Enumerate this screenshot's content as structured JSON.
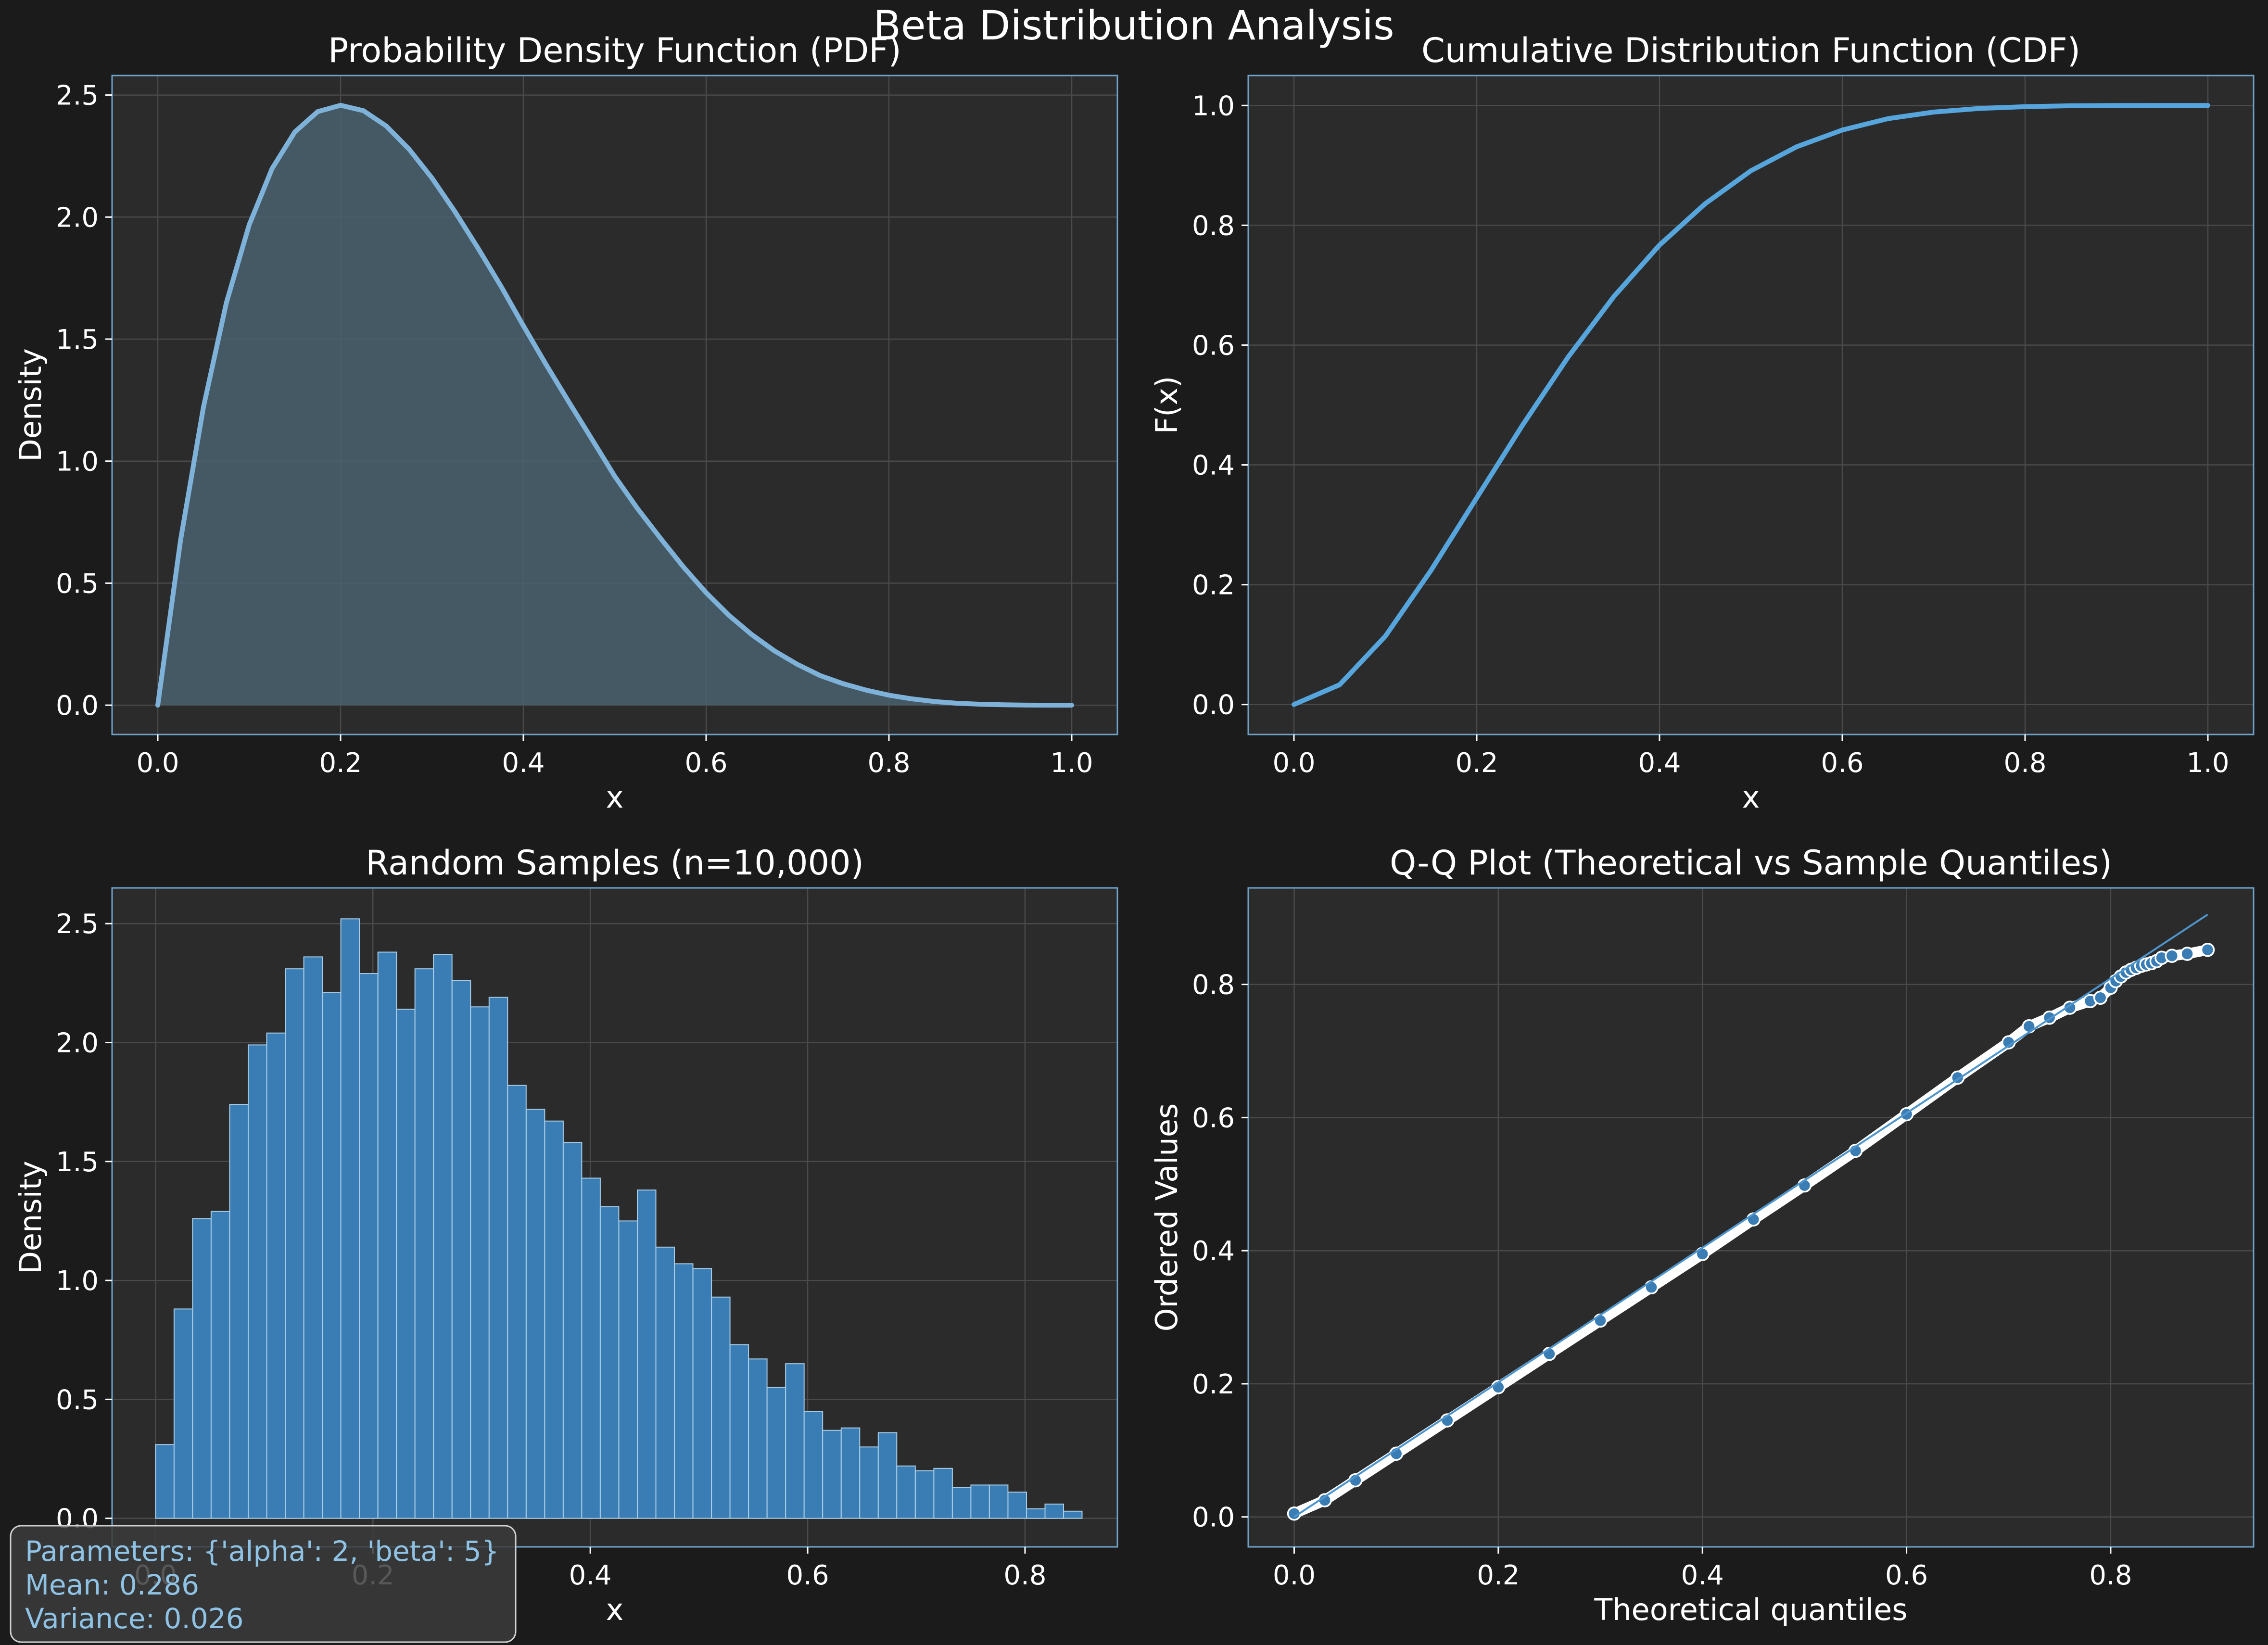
{
  "figure": {
    "suptitle": "Beta Distribution Analysis",
    "background": "#1b1b1b",
    "axes_background": "#2b2b2b",
    "spine_color": "#6fa3c9",
    "grid_color": "#4a4a4a",
    "text_color": "#ffffff"
  },
  "info_box": {
    "line1": "Parameters: {'alpha': 2, 'beta': 5}",
    "line2": "Mean: 0.286",
    "line3": "Variance: 0.026",
    "text_color": "#8fc3e6"
  },
  "chart_data": [
    {
      "type": "area",
      "title": "Probability Density Function (PDF)",
      "xlabel": "x",
      "ylabel": "Density",
      "xlim": [
        -0.05,
        1.05
      ],
      "ylim": [
        -0.12,
        2.58
      ],
      "xticks": [
        0.0,
        0.2,
        0.4,
        0.6,
        0.8,
        1.0
      ],
      "xtick_labels": [
        "0.0",
        "0.2",
        "0.4",
        "0.6",
        "0.8",
        "1.0"
      ],
      "yticks": [
        0.0,
        0.5,
        1.0,
        1.5,
        2.0,
        2.5
      ],
      "ytick_labels": [
        "0.0",
        "0.5",
        "1.0",
        "1.5",
        "2.0",
        "2.5"
      ],
      "grid": true,
      "line_color": "#7fb2d9",
      "fill_color": "#4a6270",
      "x": [
        0.0,
        0.025,
        0.05,
        0.075,
        0.1,
        0.125,
        0.15,
        0.175,
        0.2,
        0.225,
        0.25,
        0.275,
        0.3,
        0.325,
        0.35,
        0.375,
        0.4,
        0.425,
        0.45,
        0.475,
        0.5,
        0.525,
        0.55,
        0.575,
        0.6,
        0.625,
        0.65,
        0.675,
        0.7,
        0.725,
        0.75,
        0.775,
        0.8,
        0.825,
        0.85,
        0.875,
        0.9,
        0.925,
        0.95,
        0.975,
        1.0
      ],
      "y": [
        0.0,
        0.678,
        1.222,
        1.648,
        1.968,
        2.198,
        2.349,
        2.432,
        2.458,
        2.436,
        2.373,
        2.278,
        2.16,
        2.023,
        1.875,
        1.72,
        1.555,
        1.395,
        1.241,
        1.09,
        0.938,
        0.805,
        0.684,
        0.567,
        0.461,
        0.368,
        0.289,
        0.222,
        0.167,
        0.121,
        0.088,
        0.062,
        0.041,
        0.026,
        0.015,
        0.008,
        0.004,
        0.0015,
        0.0005,
        0.0001,
        0.0
      ]
    },
    {
      "type": "line",
      "title": "Cumulative Distribution Function (CDF)",
      "xlabel": "x",
      "ylabel": "F(x)",
      "xlim": [
        -0.05,
        1.05
      ],
      "ylim": [
        -0.05,
        1.05
      ],
      "xticks": [
        0.0,
        0.2,
        0.4,
        0.6,
        0.8,
        1.0
      ],
      "xtick_labels": [
        "0.0",
        "0.2",
        "0.4",
        "0.6",
        "0.8",
        "1.0"
      ],
      "yticks": [
        0.0,
        0.2,
        0.4,
        0.6,
        0.8,
        1.0
      ],
      "ytick_labels": [
        "0.0",
        "0.2",
        "0.4",
        "0.6",
        "0.8",
        "1.0"
      ],
      "grid": true,
      "line_color": "#56a6dd",
      "x": [
        0.0,
        0.05,
        0.1,
        0.15,
        0.2,
        0.25,
        0.3,
        0.35,
        0.4,
        0.45,
        0.5,
        0.55,
        0.6,
        0.65,
        0.7,
        0.75,
        0.8,
        0.85,
        0.9,
        0.95,
        1.0
      ],
      "y": [
        0.0,
        0.033,
        0.114,
        0.224,
        0.345,
        0.466,
        0.58,
        0.681,
        0.767,
        0.836,
        0.891,
        0.931,
        0.959,
        0.978,
        0.989,
        0.995,
        0.998,
        0.9995,
        0.9999,
        1.0,
        1.0
      ]
    },
    {
      "type": "bar",
      "title": "Random Samples (n=10,000)",
      "xlabel": "x",
      "ylabel": "Density",
      "xlim": [
        -0.04,
        0.885
      ],
      "ylim": [
        -0.12,
        2.65
      ],
      "xticks": [
        0.0,
        0.2,
        0.4,
        0.6,
        0.8
      ],
      "xtick_labels": [
        "0.0",
        "0.2",
        "0.4",
        "0.6",
        "0.8"
      ],
      "yticks": [
        0.0,
        0.5,
        1.0,
        1.5,
        2.0,
        2.5
      ],
      "ytick_labels": [
        "0.0",
        "0.5",
        "1.0",
        "1.5",
        "2.0",
        "2.5"
      ],
      "grid": true,
      "bar_color": "#3a7db5",
      "bar_edge_color": "#a9cde6",
      "bin_start": 0.0,
      "bin_width": 0.01705,
      "values": [
        0.31,
        0.88,
        1.26,
        1.29,
        1.74,
        1.99,
        2.04,
        2.31,
        2.36,
        2.21,
        2.52,
        2.29,
        2.38,
        2.14,
        2.31,
        2.37,
        2.26,
        2.15,
        2.19,
        1.82,
        1.72,
        1.67,
        1.58,
        1.43,
        1.31,
        1.25,
        1.38,
        1.14,
        1.07,
        1.05,
        0.93,
        0.73,
        0.67,
        0.55,
        0.65,
        0.45,
        0.37,
        0.38,
        0.3,
        0.36,
        0.22,
        0.2,
        0.21,
        0.13,
        0.14,
        0.14,
        0.11,
        0.04,
        0.06,
        0.03
      ]
    },
    {
      "type": "scatter",
      "title": "Q-Q Plot (Theoretical vs Sample Quantiles)",
      "xlabel": "Theoretical quantiles",
      "ylabel": "Ordered Values",
      "xlim": [
        -0.045,
        0.94
      ],
      "ylim": [
        -0.045,
        0.945
      ],
      "xticks": [
        0.0,
        0.2,
        0.4,
        0.6,
        0.8
      ],
      "xtick_labels": [
        "0.0",
        "0.2",
        "0.4",
        "0.6",
        "0.8"
      ],
      "yticks": [
        0.0,
        0.2,
        0.4,
        0.6,
        0.8
      ],
      "ytick_labels": [
        "0.0",
        "0.2",
        "0.4",
        "0.6",
        "0.8"
      ],
      "grid": true,
      "marker_fill": "#3a7db5",
      "marker_edge": "#ffffff",
      "reference_line_color": "#4d95cc",
      "reference_line": [
        [
          0.0,
          0.0
        ],
        [
          0.895,
          0.905
        ]
      ],
      "x": [
        0.0,
        0.03,
        0.06,
        0.1,
        0.15,
        0.2,
        0.25,
        0.3,
        0.35,
        0.4,
        0.45,
        0.5,
        0.55,
        0.6,
        0.65,
        0.7,
        0.72,
        0.74,
        0.76,
        0.78,
        0.79,
        0.8,
        0.805,
        0.81,
        0.815,
        0.82,
        0.825,
        0.83,
        0.835,
        0.84,
        0.845,
        0.85,
        0.86,
        0.875,
        0.895
      ],
      "y": [
        0.005,
        0.025,
        0.055,
        0.095,
        0.145,
        0.195,
        0.245,
        0.295,
        0.345,
        0.395,
        0.447,
        0.498,
        0.55,
        0.605,
        0.66,
        0.713,
        0.737,
        0.75,
        0.765,
        0.775,
        0.78,
        0.795,
        0.805,
        0.812,
        0.818,
        0.822,
        0.825,
        0.828,
        0.83,
        0.832,
        0.835,
        0.84,
        0.843,
        0.846,
        0.852
      ]
    }
  ]
}
